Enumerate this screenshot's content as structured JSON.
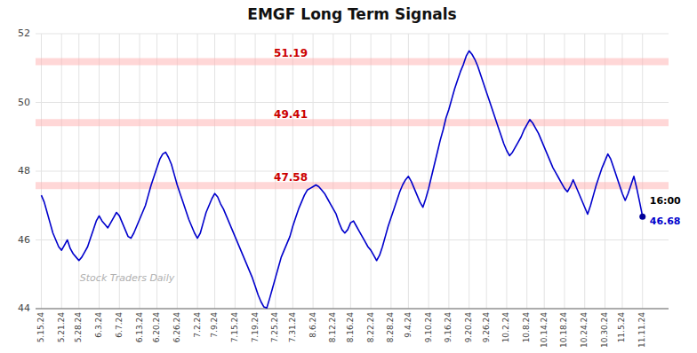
{
  "chart_data": {
    "type": "line",
    "title": "EMGF Long Term Signals",
    "categories": [
      "5.15.24",
      null,
      null,
      null,
      null,
      null,
      null,
      "5.21.24",
      null,
      null,
      null,
      null,
      null,
      "5.28.24",
      null,
      null,
      null,
      null,
      null,
      null,
      "6.3.24",
      null,
      null,
      null,
      null,
      null,
      null,
      "6.7.24",
      null,
      null,
      null,
      null,
      null,
      null,
      "6.13.24",
      null,
      null,
      null,
      null,
      null,
      "6.20.24",
      null,
      null,
      null,
      null,
      null,
      null,
      "6.26.24",
      null,
      null,
      null,
      null,
      null,
      null,
      "7.2.24",
      null,
      null,
      null,
      null,
      null,
      "7.9.24",
      null,
      null,
      null,
      null,
      null,
      null,
      "7.15.24",
      null,
      null,
      null,
      null,
      null,
      null,
      "7.19.24",
      null,
      null,
      null,
      null,
      null,
      null,
      "7.25.24",
      null,
      null,
      null,
      null,
      null,
      "7.31.24",
      null,
      null,
      null,
      null,
      null,
      null,
      "8.6.24",
      null,
      null,
      null,
      null,
      null,
      null,
      "8.12.24",
      null,
      null,
      null,
      null,
      null,
      "8.16.24",
      null,
      null,
      null,
      null,
      null,
      null,
      "8.22.24",
      null,
      null,
      null,
      null,
      null,
      null,
      "8.28.24",
      null,
      null,
      null,
      null,
      null,
      "9.4.24",
      null,
      null,
      null,
      null,
      null,
      null,
      "9.10.24",
      null,
      null,
      null,
      null,
      null,
      null,
      "9.16.24",
      null,
      null,
      null,
      null,
      null,
      null,
      "9.20.24",
      null,
      null,
      null,
      null,
      null,
      "9.26.24",
      null,
      null,
      null,
      null,
      null,
      null,
      "10.2.24",
      null,
      null,
      null,
      null,
      null,
      null,
      "10.8.24",
      null,
      null,
      null,
      null,
      null,
      "10.14.24",
      null,
      null,
      null,
      null,
      null,
      null,
      "10.18.24",
      null,
      null,
      null,
      null,
      null,
      null,
      "10.24.24",
      null,
      null,
      null,
      null,
      null,
      null,
      "10.30.24",
      null,
      null,
      null,
      null,
      null,
      "11.5.24",
      null,
      null,
      null,
      null,
      null,
      null,
      "11.11.24"
    ],
    "values": [
      47.3,
      47.1,
      46.8,
      46.5,
      46.2,
      46.0,
      45.8,
      45.7,
      45.85,
      46.0,
      45.75,
      45.6,
      45.5,
      45.4,
      45.5,
      45.65,
      45.8,
      46.05,
      46.3,
      46.55,
      46.7,
      46.55,
      46.45,
      46.35,
      46.5,
      46.65,
      46.8,
      46.7,
      46.5,
      46.3,
      46.1,
      46.05,
      46.2,
      46.4,
      46.6,
      46.8,
      47.0,
      47.3,
      47.6,
      47.85,
      48.1,
      48.35,
      48.5,
      48.55,
      48.4,
      48.2,
      47.9,
      47.6,
      47.35,
      47.1,
      46.85,
      46.6,
      46.4,
      46.2,
      46.05,
      46.2,
      46.5,
      46.8,
      47.0,
      47.2,
      47.35,
      47.25,
      47.05,
      46.9,
      46.7,
      46.5,
      46.3,
      46.1,
      45.9,
      45.7,
      45.5,
      45.3,
      45.1,
      44.9,
      44.65,
      44.4,
      44.2,
      44.05,
      44.02,
      44.3,
      44.6,
      44.9,
      45.2,
      45.5,
      45.7,
      45.9,
      46.1,
      46.4,
      46.65,
      46.9,
      47.1,
      47.3,
      47.45,
      47.5,
      47.55,
      47.6,
      47.55,
      47.45,
      47.35,
      47.2,
      47.05,
      46.9,
      46.75,
      46.5,
      46.3,
      46.2,
      46.3,
      46.5,
      46.55,
      46.4,
      46.25,
      46.1,
      45.95,
      45.8,
      45.7,
      45.55,
      45.4,
      45.55,
      45.8,
      46.1,
      46.4,
      46.65,
      46.9,
      47.15,
      47.4,
      47.6,
      47.75,
      47.85,
      47.7,
      47.5,
      47.3,
      47.1,
      46.95,
      47.2,
      47.5,
      47.85,
      48.2,
      48.55,
      48.9,
      49.2,
      49.55,
      49.8,
      50.1,
      50.4,
      50.65,
      50.9,
      51.1,
      51.35,
      51.5,
      51.4,
      51.25,
      51.05,
      50.8,
      50.55,
      50.3,
      50.05,
      49.8,
      49.55,
      49.3,
      49.05,
      48.8,
      48.6,
      48.45,
      48.55,
      48.7,
      48.85,
      49.0,
      49.2,
      49.35,
      49.5,
      49.4,
      49.25,
      49.1,
      48.9,
      48.7,
      48.5,
      48.3,
      48.1,
      47.95,
      47.8,
      47.65,
      47.5,
      47.4,
      47.55,
      47.75,
      47.55,
      47.35,
      47.15,
      46.95,
      46.75,
      47.0,
      47.3,
      47.6,
      47.85,
      48.1,
      48.3,
      48.5,
      48.35,
      48.1,
      47.85,
      47.6,
      47.35,
      47.15,
      47.35,
      47.6,
      47.85,
      47.5,
      47.1,
      46.68
    ],
    "color": "#0000cc",
    "ylim": [
      44,
      52
    ],
    "yticks": [
      44,
      46,
      48,
      50,
      52
    ],
    "grid": true,
    "hlines": {
      "values": [
        51.19,
        49.41,
        47.58
      ],
      "color": "#ffb0b0"
    },
    "last_point": {
      "value": 46.68,
      "label": "16:00",
      "color": "#000099"
    },
    "annotations": [
      {
        "text": "Stock Traders Daily",
        "color": "#b0b0b0"
      }
    ]
  }
}
